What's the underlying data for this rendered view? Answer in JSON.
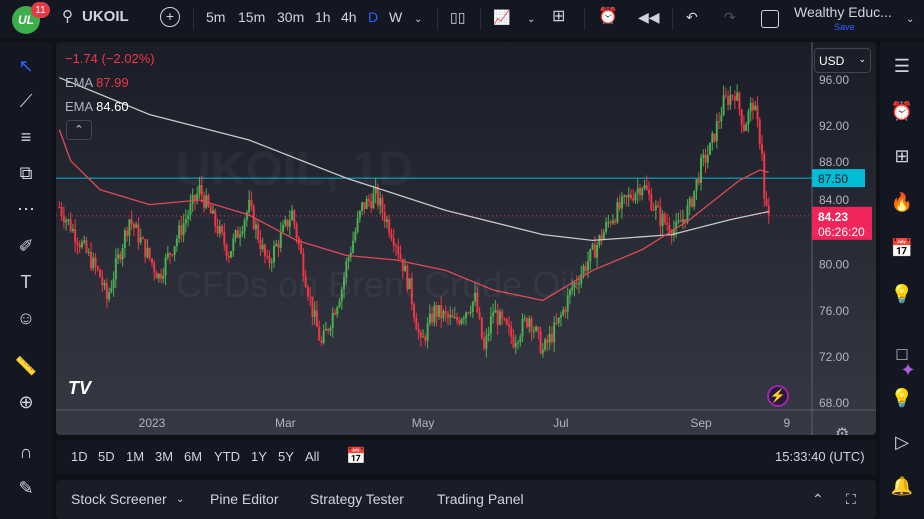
{
  "app": {
    "notification_count": "11",
    "logo_text": "UL"
  },
  "toolbar": {
    "symbol": "UKOIL",
    "intervals": [
      "5m",
      "15m",
      "30m",
      "1h",
      "4h",
      "D",
      "W"
    ],
    "active_interval": "D",
    "layout_name": "Wealthy Educ...",
    "save_label": "Save"
  },
  "legend": {
    "change": "−1.74 (−2.02%)",
    "ema1_label": "EMA",
    "ema1_value": "87.99",
    "ema2_label": "EMA",
    "ema2_value": "84.60"
  },
  "watermark": {
    "title": "UKOIL, 1D",
    "subtitle": "CFDs on Brent Crude Oil"
  },
  "price_axis": {
    "currency": "USD",
    "ticks": [
      "96.00",
      "92.00",
      "88.00",
      "84.00",
      "80.00",
      "76.00",
      "72.00",
      "68.00"
    ],
    "hline_label": "87.50",
    "last_price": "84.23",
    "countdown": "06:26:20"
  },
  "time_axis": {
    "ticks": [
      {
        "label": "2023",
        "date": "2023-01-01"
      },
      {
        "label": "Mar",
        "date": "2023-03-01"
      },
      {
        "label": "May",
        "date": "2023-05-01"
      },
      {
        "label": "Jul",
        "date": "2023-07-01"
      },
      {
        "label": "Sep",
        "date": "2023-09-01"
      },
      {
        "label": "9",
        "date": "2023-10-09"
      }
    ]
  },
  "ranges": [
    "1D",
    "5D",
    "1M",
    "3M",
    "6M",
    "YTD",
    "1Y",
    "5Y",
    "All"
  ],
  "clock": "15:33:40 (UTC)",
  "bottom_tabs": [
    "Stock Screener",
    "Pine Editor",
    "Strategy Tester",
    "Trading Panel"
  ],
  "colors": {
    "up": "#4caf50",
    "down": "#f23645",
    "ema_fast": "#e04a55",
    "ema_slow": "#c8c8c8",
    "hline": "#00bcd4",
    "last": "#f0265a",
    "accent": "#2962ff"
  },
  "chart_data": {
    "type": "candlestick",
    "symbol": "UKOIL",
    "interval": "1D",
    "ylim": [
      68,
      97
    ],
    "hline": 87.5,
    "last": 84.23,
    "close_path": [
      [
        "2022-11-21",
        85
      ],
      [
        "2022-12-09",
        79
      ],
      [
        "2022-12-12",
        77
      ],
      [
        "2022-12-22",
        84
      ],
      [
        "2023-01-04",
        79
      ],
      [
        "2023-01-22",
        86.5
      ],
      [
        "2023-02-04",
        81
      ],
      [
        "2023-02-13",
        85
      ],
      [
        "2023-02-21",
        80
      ],
      [
        "2023-03-04",
        84.5
      ],
      [
        "2023-03-13",
        76
      ],
      [
        "2023-03-17",
        73
      ],
      [
        "2023-03-26",
        78
      ],
      [
        "2023-03-28",
        80
      ],
      [
        "2023-04-04",
        85
      ],
      [
        "2023-04-10",
        86
      ],
      [
        "2023-04-19",
        82
      ],
      [
        "2023-04-25",
        78
      ],
      [
        "2023-04-30",
        73
      ],
      [
        "2023-05-06",
        76
      ],
      [
        "2023-05-15",
        75
      ],
      [
        "2023-05-24",
        77
      ],
      [
        "2023-05-28",
        72.5
      ],
      [
        "2023-06-01",
        76
      ],
      [
        "2023-06-10",
        73.5
      ],
      [
        "2023-06-17",
        75.5
      ],
      [
        "2023-06-23",
        72.5
      ],
      [
        "2023-06-30",
        75
      ],
      [
        "2023-07-06",
        78
      ],
      [
        "2023-07-15",
        81
      ],
      [
        "2023-07-23",
        84
      ],
      [
        "2023-08-01",
        86
      ],
      [
        "2023-08-06",
        87
      ],
      [
        "2023-08-14",
        84
      ],
      [
        "2023-08-21",
        83
      ],
      [
        "2023-08-27",
        85
      ],
      [
        "2023-09-01",
        88.5
      ],
      [
        "2023-09-05",
        90
      ],
      [
        "2023-09-11",
        94
      ],
      [
        "2023-09-16",
        95
      ],
      [
        "2023-09-20",
        92
      ],
      [
        "2023-09-24",
        94
      ],
      [
        "2023-09-28",
        90
      ],
      [
        "2023-09-29",
        85.5
      ],
      [
        "2023-10-01",
        84.23
      ]
    ],
    "ema_slow": [
      [
        "2022-11-21",
        96.2
      ],
      [
        "2022-12-31",
        93
      ],
      [
        "2023-02-13",
        90.8
      ],
      [
        "2023-03-28",
        87.5
      ],
      [
        "2023-05-11",
        84.7
      ],
      [
        "2023-06-23",
        82.6
      ],
      [
        "2023-07-15",
        82.1
      ],
      [
        "2023-08-19",
        82.6
      ],
      [
        "2023-09-14",
        83.9
      ],
      [
        "2023-10-01",
        84.6
      ]
    ],
    "ema_fast": [
      [
        "2022-11-21",
        91.7
      ],
      [
        "2022-11-26",
        89
      ],
      [
        "2022-12-09",
        86.5
      ],
      [
        "2022-12-31",
        85.2
      ],
      [
        "2023-01-22",
        85.6
      ],
      [
        "2023-02-13",
        84.3
      ],
      [
        "2023-03-06",
        82.1
      ],
      [
        "2023-03-28",
        80.8
      ],
      [
        "2023-04-19",
        80.4
      ],
      [
        "2023-05-11",
        79.5
      ],
      [
        "2023-06-01",
        77.8
      ],
      [
        "2023-06-23",
        76.9
      ],
      [
        "2023-07-15",
        79.5
      ],
      [
        "2023-08-06",
        81.3
      ],
      [
        "2023-08-27",
        83.9
      ],
      [
        "2023-09-18",
        87.3
      ],
      [
        "2023-09-27",
        88.2
      ],
      [
        "2023-10-01",
        88
      ]
    ]
  }
}
